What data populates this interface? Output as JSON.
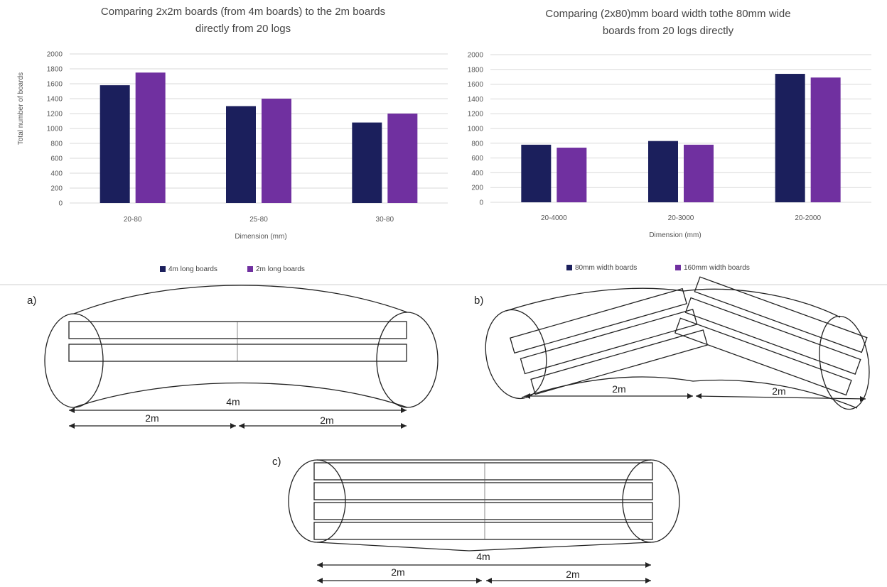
{
  "chart_data": [
    {
      "type": "bar",
      "title_lines": [
        "Comparing 2x2m boards (from 4m boards) to the 2m boards",
        "directly from 20 logs"
      ],
      "xlabel": "Dimension (mm)",
      "ylabel": "Total number of boards",
      "ylim": [
        0,
        2000
      ],
      "yticks": [
        "0",
        "200",
        "400",
        "600",
        "800",
        "1000",
        "1200",
        "1400",
        "1600",
        "1800",
        "2000"
      ],
      "grid": true,
      "legend_position": "bottom",
      "categories": [
        "20-80",
        "25-80",
        "30-80"
      ],
      "series": [
        {
          "name": "4m long boards",
          "color": "#1b1f5c",
          "values": [
            1580,
            1300,
            1080
          ]
        },
        {
          "name": "2m long boards",
          "color": "#7030a0",
          "values": [
            1750,
            1400,
            1200
          ]
        }
      ]
    },
    {
      "type": "bar",
      "title_lines": [
        "Comparing (2x80)mm board width tothe 80mm wide",
        "boards from 20 logs directly"
      ],
      "xlabel": "Dimension (mm)",
      "ylabel": "",
      "ylim": [
        0,
        2000
      ],
      "yticks": [
        "0",
        "200",
        "400",
        "600",
        "800",
        "1000",
        "1200",
        "1400",
        "1600",
        "1800",
        "2000"
      ],
      "grid": true,
      "legend_position": "bottom",
      "categories": [
        "20-4000",
        "20-3000",
        "20-2000"
      ],
      "series": [
        {
          "name": "80mm width boards",
          "color": "#1b1f5c",
          "values": [
            780,
            830,
            1740
          ]
        },
        {
          "name": "160mm width boards",
          "color": "#7030a0",
          "values": [
            740,
            780,
            1690
          ]
        }
      ]
    }
  ],
  "diagrams": {
    "a": {
      "label": "a)",
      "total": "4m",
      "half_left": "2m",
      "half_right": "2m"
    },
    "b": {
      "label": "b)",
      "half_left": "2m",
      "half_right": "2m"
    },
    "c": {
      "label": "c)",
      "total": "4m",
      "half_left": "2m",
      "half_right": "2m"
    }
  }
}
